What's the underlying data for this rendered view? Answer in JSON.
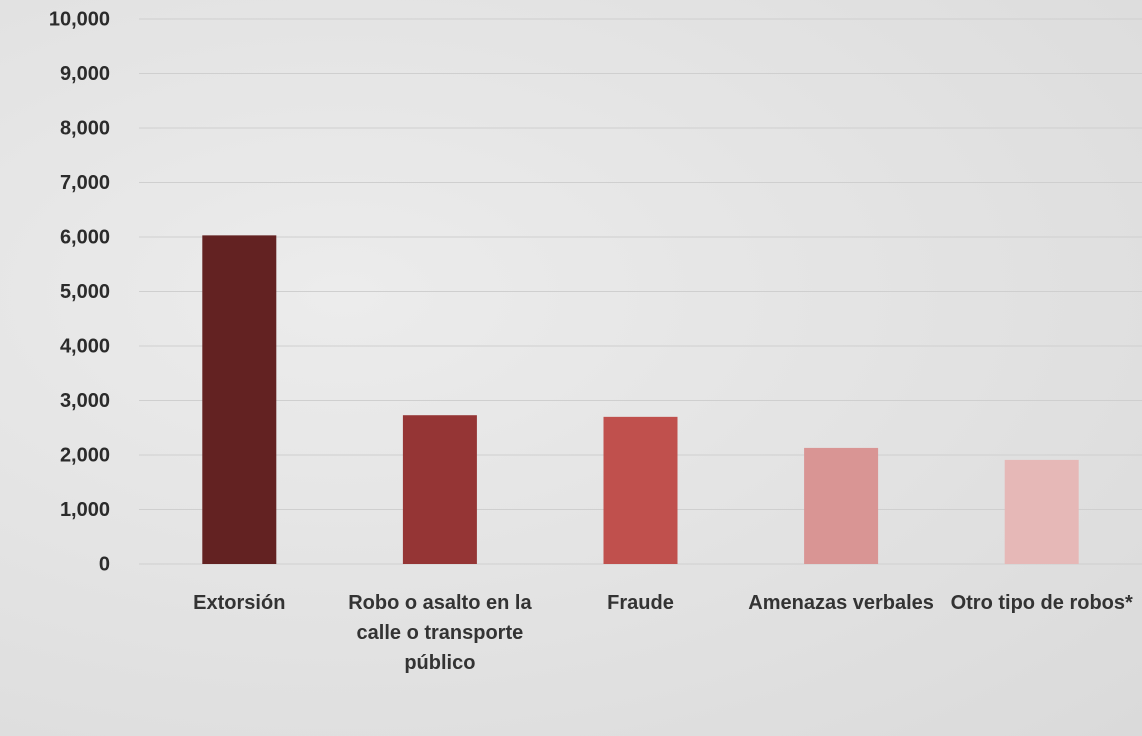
{
  "chart_data": {
    "type": "bar",
    "categories": [
      "Extorsión",
      "Robo o asalto en la calle o transporte público",
      "Fraude",
      "Amenazas verbales",
      "Otro tipo de robos*"
    ],
    "values": [
      6030,
      2730,
      2700,
      2130,
      1910
    ],
    "colors": [
      "#632222",
      "#953535",
      "#c0504d",
      "#d99594",
      "#e6b8b7"
    ],
    "ylim": [
      0,
      10000
    ],
    "yticks": [
      0,
      {
        "value": 1000,
        "label": "1,000"
      },
      {
        "value": 2000,
        "label": "2,000"
      },
      {
        "value": 3000,
        "label": "3,000"
      },
      {
        "value": 4000,
        "label": "4,000"
      },
      {
        "value": 5000,
        "label": "5,000"
      },
      {
        "value": 6000,
        "label": "6,000"
      },
      {
        "value": 7000,
        "label": "7,000"
      },
      {
        "value": 8000,
        "label": "8,000"
      },
      {
        "value": 9000,
        "label": "9,000"
      },
      {
        "value": 10000,
        "label": "10,000"
      }
    ],
    "grid": true
  }
}
